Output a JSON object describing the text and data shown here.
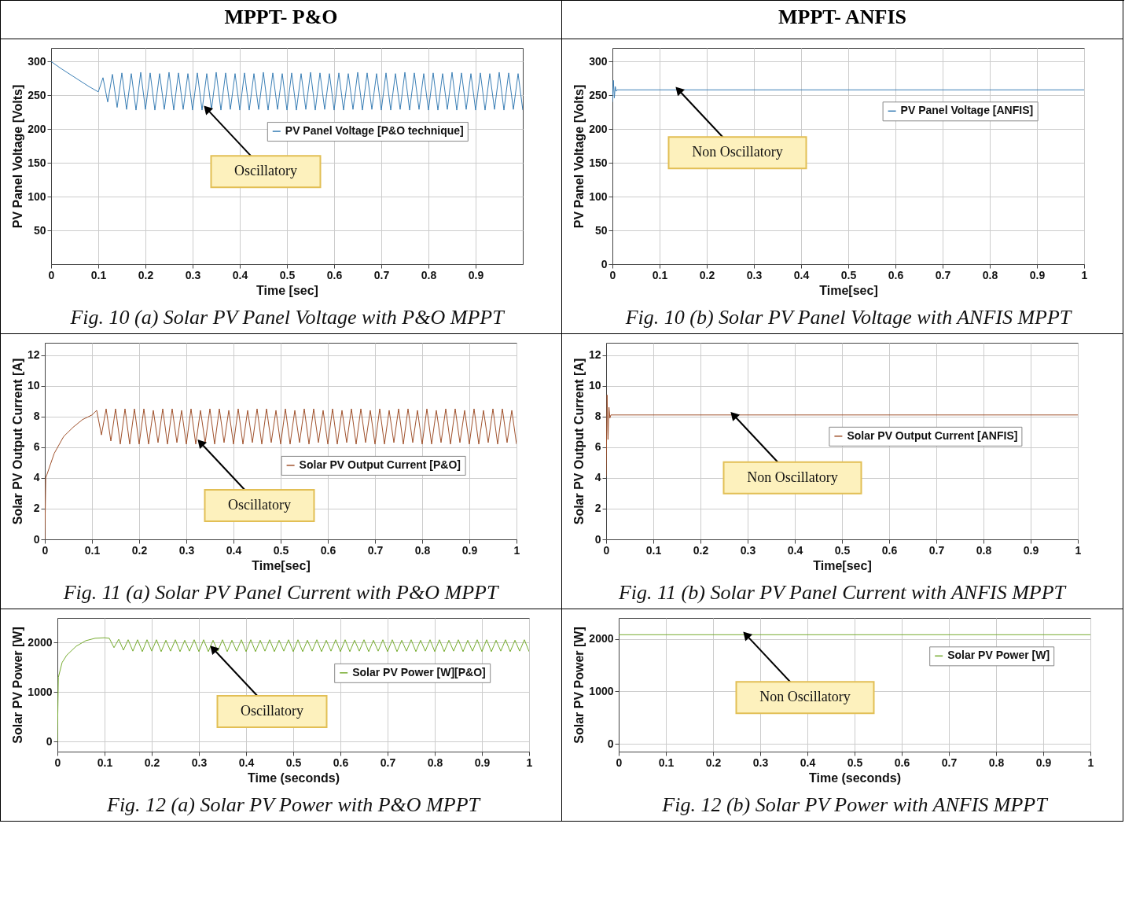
{
  "chart_data": [
    {
      "type": "line",
      "subtitle": "MPPT- P&O",
      "title": "Fig. 10 (a)  Solar PV Panel Voltage with P&O MPPT",
      "xlabel": "Time [sec]",
      "ylabel": "PV Panel Voltage [Volts]",
      "xlim": [
        0,
        1
      ],
      "xticks": [
        0,
        0.1,
        0.2,
        0.3,
        0.4,
        0.5,
        0.6,
        0.7,
        0.8,
        0.9
      ],
      "ylim": [
        0,
        320
      ],
      "yticks": [
        50,
        100,
        150,
        200,
        250,
        300
      ],
      "grid": true,
      "legend": "right",
      "annotations": [
        {
          "text": "Oscillatory",
          "x": 0.33,
          "y": 230
        }
      ],
      "series": [
        {
          "name": "PV Panel Voltage [P&O technique]",
          "color": "#3b7fb6",
          "x": [
            0,
            0.02,
            0.04,
            0.06,
            0.08,
            0.1,
            0.11,
            0.12,
            0.13,
            0.14,
            0.15,
            0.16,
            0.17,
            0.18,
            0.19,
            0.2,
            0.21,
            0.22,
            0.23,
            0.24,
            0.25,
            0.26,
            0.27,
            0.28,
            0.29,
            0.3,
            0.31,
            0.32,
            0.33,
            0.34,
            0.35,
            0.36,
            0.37,
            0.38,
            0.39,
            0.4,
            0.41,
            0.42,
            0.43,
            0.44,
            0.45,
            0.46,
            0.47,
            0.48,
            0.49,
            0.5,
            0.51,
            0.52,
            0.53,
            0.54,
            0.55,
            0.56,
            0.57,
            0.58,
            0.59,
            0.6,
            0.61,
            0.62,
            0.63,
            0.64,
            0.65,
            0.66,
            0.67,
            0.68,
            0.69,
            0.7,
            0.71,
            0.72,
            0.73,
            0.74,
            0.75,
            0.76,
            0.77,
            0.78,
            0.79,
            0.8,
            0.81,
            0.82,
            0.83,
            0.84,
            0.85,
            0.86,
            0.87,
            0.88,
            0.89,
            0.9,
            0.91,
            0.92,
            0.93,
            0.94,
            0.95,
            0.96,
            0.97,
            0.98,
            0.99,
            1
          ],
          "values": [
            300,
            290,
            281,
            272,
            263,
            255,
            276,
            240,
            281,
            232,
            283,
            229,
            282,
            228,
            284,
            229,
            283,
            228,
            282,
            229,
            284,
            228,
            283,
            229,
            282,
            228,
            283,
            228,
            282,
            229,
            284,
            228,
            283,
            229,
            282,
            228,
            283,
            228,
            282,
            229,
            284,
            228,
            283,
            229,
            282,
            228,
            283,
            228,
            282,
            229,
            284,
            228,
            283,
            229,
            282,
            228,
            283,
            228,
            282,
            229,
            284,
            228,
            283,
            229,
            282,
            228,
            283,
            228,
            282,
            229,
            284,
            228,
            283,
            229,
            282,
            228,
            283,
            228,
            282,
            229,
            284,
            228,
            283,
            229,
            282,
            228,
            283,
            228,
            282,
            229,
            284,
            228,
            283,
            229,
            282,
            228
          ]
        }
      ]
    },
    {
      "type": "line",
      "subtitle": "MPPT- ANFIS",
      "title": "Fig. 10 (b)  Solar PV Panel Voltage with ANFIS MPPT",
      "xlabel": "Time[sec]",
      "ylabel": "PV Panel Voltage [Volts]",
      "xlim": [
        0,
        1
      ],
      "xticks": [
        0,
        0.1,
        0.2,
        0.3,
        0.4,
        0.5,
        0.6,
        0.7,
        0.8,
        0.9,
        1
      ],
      "ylim": [
        0,
        320
      ],
      "yticks": [
        0,
        50,
        100,
        150,
        200,
        250,
        300
      ],
      "grid": true,
      "legend": "right",
      "annotations": [
        {
          "text": "Non Oscillatory",
          "x": 0.14,
          "y": 258
        }
      ],
      "series": [
        {
          "name": "PV Panel Voltage [ANFIS]",
          "color": "#3b7fb6",
          "x": [
            0,
            0.002,
            0.004,
            0.006,
            0.008,
            0.01,
            0.1,
            0.2,
            0.3,
            0.4,
            0.5,
            0.6,
            0.7,
            0.8,
            0.9,
            1
          ],
          "values": [
            240,
            272,
            246,
            263,
            256,
            258,
            258,
            258,
            258,
            258,
            258,
            258,
            258,
            258,
            258,
            258
          ]
        }
      ]
    },
    {
      "type": "line",
      "title": "Fig. 11 (a)  Solar PV Panel Current with P&O MPPT",
      "xlabel": "Time[sec]",
      "ylabel": "Solar PV Output Current [A]",
      "xlim": [
        0,
        1
      ],
      "xticks": [
        0,
        0.1,
        0.2,
        0.3,
        0.4,
        0.5,
        0.6,
        0.7,
        0.8,
        0.9,
        1
      ],
      "ylim": [
        0,
        12.8
      ],
      "yticks": [
        0,
        2,
        4,
        6,
        8,
        10,
        12
      ],
      "grid": true,
      "legend": "right",
      "annotations": [
        {
          "text": "Oscillatory",
          "x": 0.33,
          "y": 6.3
        }
      ],
      "series": [
        {
          "name": "Solar PV Output Current [P&O]",
          "color": "#a0522d",
          "x": [
            0,
            0.002,
            0.02,
            0.04,
            0.06,
            0.08,
            0.1,
            0.11,
            0.12,
            0.13,
            0.14,
            0.15,
            0.16,
            0.17,
            0.18,
            0.19,
            0.2,
            0.21,
            0.22,
            0.23,
            0.24,
            0.25,
            0.26,
            0.27,
            0.28,
            0.29,
            0.3,
            0.31,
            0.32,
            0.33,
            0.34,
            0.35,
            0.36,
            0.37,
            0.38,
            0.39,
            0.4,
            0.41,
            0.42,
            0.43,
            0.44,
            0.45,
            0.46,
            0.47,
            0.48,
            0.49,
            0.5,
            0.51,
            0.52,
            0.53,
            0.54,
            0.55,
            0.56,
            0.57,
            0.58,
            0.59,
            0.6,
            0.61,
            0.62,
            0.63,
            0.64,
            0.65,
            0.66,
            0.67,
            0.68,
            0.69,
            0.7,
            0.71,
            0.72,
            0.73,
            0.74,
            0.75,
            0.76,
            0.77,
            0.78,
            0.79,
            0.8,
            0.81,
            0.82,
            0.83,
            0.84,
            0.85,
            0.86,
            0.87,
            0.88,
            0.89,
            0.9,
            0.91,
            0.92,
            0.93,
            0.94,
            0.95,
            0.96,
            0.97,
            0.98,
            0.99,
            1
          ],
          "values": [
            0,
            4,
            5.6,
            6.7,
            7.3,
            7.8,
            8.1,
            8.4,
            6.8,
            8.5,
            6.4,
            8.5,
            6.2,
            8.5,
            6.2,
            8.5,
            6.2,
            8.5,
            6.2,
            8.4,
            6.3,
            8.5,
            6.2,
            8.5,
            6.3,
            8.4,
            6.2,
            8.5,
            6.2,
            8.4,
            6.3,
            8.5,
            6.2,
            8.5,
            6.3,
            8.4,
            6.2,
            8.5,
            6.2,
            8.4,
            6.3,
            8.5,
            6.2,
            8.5,
            6.3,
            8.4,
            6.2,
            8.5,
            6.2,
            8.4,
            6.3,
            8.5,
            6.2,
            8.5,
            6.3,
            8.4,
            6.2,
            8.5,
            6.2,
            8.4,
            6.3,
            8.5,
            6.2,
            8.5,
            6.3,
            8.4,
            6.2,
            8.5,
            6.2,
            8.4,
            6.3,
            8.5,
            6.2,
            8.5,
            6.3,
            8.4,
            6.2,
            8.5,
            6.2,
            8.4,
            6.3,
            8.5,
            6.2,
            8.5,
            6.3,
            8.4,
            6.2,
            8.5,
            6.2,
            8.4,
            6.3,
            8.5,
            6.2,
            8.5,
            6.3,
            8.4,
            6.2
          ]
        }
      ]
    },
    {
      "type": "line",
      "title": "Fig.  11 (b)  Solar PV Panel Current with ANFIS MPPT",
      "xlabel": "Time[sec]",
      "ylabel": "Solar PV Output Current [A]",
      "xlim": [
        0,
        1
      ],
      "xticks": [
        0,
        0.1,
        0.2,
        0.3,
        0.4,
        0.5,
        0.6,
        0.7,
        0.8,
        0.9,
        1
      ],
      "ylim": [
        0,
        12.8
      ],
      "yticks": [
        0,
        2,
        4,
        6,
        8,
        10,
        12
      ],
      "grid": true,
      "legend": "right",
      "annotations": [
        {
          "text": "Non Oscillatory",
          "x": 0.27,
          "y": 8.1
        }
      ],
      "series": [
        {
          "name": "Solar PV Output Current [ANFIS]",
          "color": "#a0522d",
          "x": [
            0,
            0.002,
            0.004,
            0.006,
            0.008,
            0.01,
            0.1,
            0.2,
            0.3,
            0.4,
            0.5,
            0.6,
            0.7,
            0.8,
            0.9,
            1
          ],
          "values": [
            4.1,
            9.4,
            6.5,
            8.6,
            7.9,
            8.1,
            8.1,
            8.1,
            8.1,
            8.1,
            8.1,
            8.1,
            8.1,
            8.1,
            8.1,
            8.1
          ]
        }
      ]
    },
    {
      "type": "line",
      "title": "Fig. 12 (a)  Solar PV Power with P&O MPPT",
      "xlabel": "Time (seconds)",
      "ylabel": "Solar PV Power [W]",
      "xlim": [
        0,
        1
      ],
      "xticks": [
        0,
        0.1,
        0.2,
        0.3,
        0.4,
        0.5,
        0.6,
        0.7,
        0.8,
        0.9,
        1
      ],
      "ylim": [
        -200,
        2500
      ],
      "yticks": [
        0,
        1000,
        2000
      ],
      "grid": true,
      "legend": "right",
      "annotations": [
        {
          "text": "Oscillatory",
          "x": 0.33,
          "y": 1880
        }
      ],
      "series": [
        {
          "name": "Solar PV Power [W][P&O]",
          "color": "#77ac30",
          "x": [
            0,
            0.002,
            0.01,
            0.02,
            0.04,
            0.06,
            0.08,
            0.1,
            0.11,
            0.12,
            0.13,
            0.14,
            0.15,
            0.16,
            0.17,
            0.18,
            0.19,
            0.2,
            0.21,
            0.22,
            0.23,
            0.24,
            0.25,
            0.26,
            0.27,
            0.28,
            0.29,
            0.3,
            0.31,
            0.32,
            0.33,
            0.34,
            0.35,
            0.36,
            0.37,
            0.38,
            0.39,
            0.4,
            0.41,
            0.42,
            0.43,
            0.44,
            0.45,
            0.46,
            0.47,
            0.48,
            0.49,
            0.5,
            0.51,
            0.52,
            0.53,
            0.54,
            0.55,
            0.56,
            0.57,
            0.58,
            0.59,
            0.6,
            0.61,
            0.62,
            0.63,
            0.64,
            0.65,
            0.66,
            0.67,
            0.68,
            0.69,
            0.7,
            0.71,
            0.72,
            0.73,
            0.74,
            0.75,
            0.76,
            0.77,
            0.78,
            0.79,
            0.8,
            0.81,
            0.82,
            0.83,
            0.84,
            0.85,
            0.86,
            0.87,
            0.88,
            0.89,
            0.9,
            0.91,
            0.92,
            0.93,
            0.94,
            0.95,
            0.96,
            0.97,
            0.98,
            0.99,
            1
          ],
          "values": [
            0,
            1300,
            1600,
            1750,
            1930,
            2040,
            2090,
            2100,
            2090,
            1900,
            2070,
            1850,
            2060,
            1830,
            2060,
            1820,
            2060,
            1830,
            2060,
            1820,
            2050,
            1830,
            2060,
            1820,
            2050,
            1830,
            2060,
            1820,
            2060,
            1820,
            2050,
            1830,
            2060,
            1820,
            2050,
            1830,
            2060,
            1820,
            2060,
            1820,
            2050,
            1830,
            2060,
            1820,
            2050,
            1830,
            2060,
            1820,
            2060,
            1820,
            2050,
            1830,
            2060,
            1820,
            2050,
            1830,
            2060,
            1820,
            2060,
            1820,
            2050,
            1830,
            2060,
            1820,
            2050,
            1830,
            2060,
            1820,
            2060,
            1820,
            2050,
            1830,
            2060,
            1820,
            2050,
            1830,
            2060,
            1820,
            2060,
            1820,
            2050,
            1830,
            2060,
            1820,
            2050,
            1830,
            2060,
            1820,
            2060,
            1820,
            2050,
            1830,
            2060,
            1820,
            2050,
            1830,
            2060,
            1820
          ]
        }
      ]
    },
    {
      "type": "line",
      "title": "Fig. 12 (b)  Solar PV Power with ANFIS MPPT",
      "xlabel": "Time (seconds)",
      "ylabel": "Solar PV Power [W]",
      "xlim": [
        0,
        1
      ],
      "xticks": [
        0,
        0.1,
        0.2,
        0.3,
        0.4,
        0.5,
        0.6,
        0.7,
        0.8,
        0.9,
        1
      ],
      "ylim": [
        -150,
        2400
      ],
      "yticks": [
        0,
        1000,
        2000
      ],
      "grid": true,
      "legend": "right",
      "annotations": [
        {
          "text": "Non Oscillatory",
          "x": 0.27,
          "y": 2080
        }
      ],
      "series": [
        {
          "name": "Solar PV Power [W]",
          "color": "#77ac30",
          "x": [
            0,
            0.1,
            0.2,
            0.3,
            0.4,
            0.5,
            0.6,
            0.7,
            0.8,
            0.9,
            1
          ],
          "values": [
            2080,
            2080,
            2080,
            2080,
            2080,
            2080,
            2080,
            2080,
            2080,
            2080,
            2080
          ]
        }
      ]
    }
  ]
}
